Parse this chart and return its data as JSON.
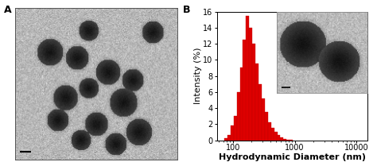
{
  "panel_a_label": "A",
  "panel_b_label": "B",
  "xlabel": "Hydrodynamic Diameter (nm)",
  "ylabel": "Intensity (%)",
  "bar_color": "#dd0000",
  "bar_edge_color": "#bb0000",
  "ylim": [
    0,
    16
  ],
  "yticks": [
    0,
    2,
    4,
    6,
    8,
    10,
    12,
    14,
    16
  ],
  "xlim_log": [
    55,
    15000
  ],
  "xticks_log": [
    100,
    1000,
    10000
  ],
  "xtick_labels": [
    "100",
    "1000",
    "10000"
  ],
  "bar_centers_nm": [
    78,
    88,
    98,
    110,
    123,
    138,
    155,
    174,
    195,
    219,
    246,
    276,
    310,
    348,
    390,
    438,
    491,
    551,
    618,
    693,
    777,
    872
  ],
  "bar_heights": [
    0.3,
    0.7,
    1.8,
    3.0,
    6.0,
    9.0,
    12.5,
    15.5,
    14.0,
    12.0,
    9.5,
    7.0,
    5.2,
    3.5,
    2.2,
    1.5,
    1.0,
    0.7,
    0.4,
    0.2,
    0.1,
    0.05
  ],
  "background_color": "#ffffff",
  "tick_fontsize": 7,
  "xlabel_fontsize": 8,
  "ylabel_fontsize": 8
}
